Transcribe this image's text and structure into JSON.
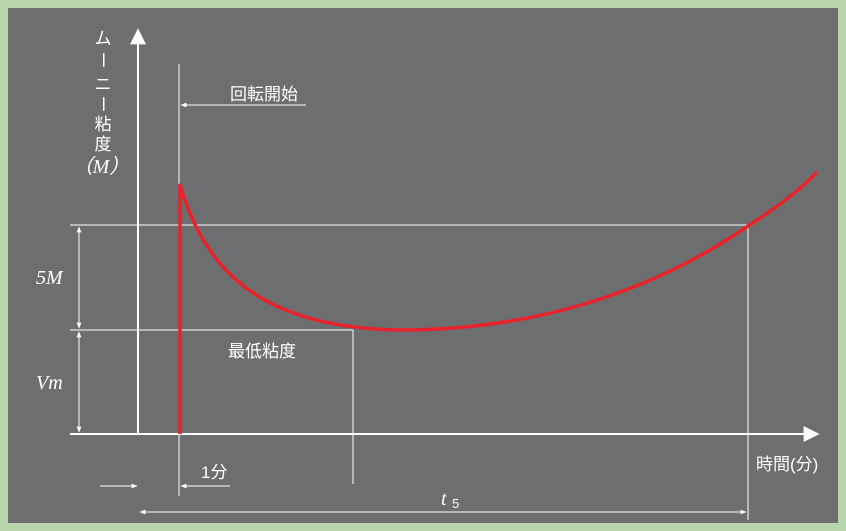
{
  "diagram": {
    "y_axis_label_chars": [
      "ム",
      "ー",
      "ニ",
      "ー",
      "粘",
      "度"
    ],
    "y_axis_label_paren": "（M）",
    "rotation_start_label": "回転開始",
    "min_viscosity_label": "最低粘度",
    "dim_5m": "5M",
    "dim_vm": "Vm",
    "x_axis_label": "時間(分)",
    "one_minute_label": "1分",
    "t5_label": "t",
    "t5_subscript": "5",
    "colors": {
      "background": "#6d6e70",
      "frame": "#b8d6ab",
      "curve": "#e8242a",
      "lines": "#ffffff"
    }
  }
}
